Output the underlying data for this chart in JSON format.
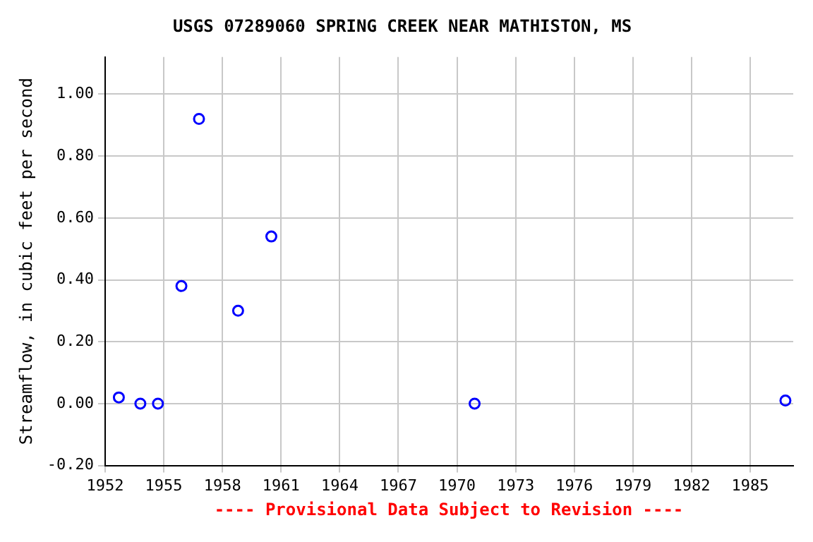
{
  "chart_data": {
    "type": "scatter",
    "title": "USGS 07289060 SPRING CREEK NEAR MATHISTON, MS",
    "ylabel": "Streamflow, in cubic feet per second",
    "annotations": [
      "---- Provisional Data Subject to Revision ----"
    ],
    "x": [
      1952.7,
      1953.8,
      1954.7,
      1955.9,
      1956.8,
      1958.8,
      1960.5,
      1970.9,
      1986.8
    ],
    "series": [
      {
        "color": "#0000ff",
        "values": [
          0.02,
          0,
          0,
          0.38,
          0.92,
          0.3,
          0.54,
          0,
          0.01
        ]
      }
    ],
    "xlim": [
      1952,
      1987.2
    ],
    "xticks": [
      1952,
      1955,
      1958,
      1961,
      1964,
      1967,
      1970,
      1973,
      1976,
      1979,
      1982,
      1985
    ],
    "ylim": [
      -0.2,
      1.12
    ],
    "yticks": [
      {
        "value": -0.2,
        "label": "-0.20"
      },
      {
        "value": 0,
        "label": "0.00"
      },
      {
        "value": 0.2,
        "label": "0.20"
      },
      {
        "value": 0.4,
        "label": "0.40"
      },
      {
        "value": 0.6,
        "label": "0.60"
      },
      {
        "value": 0.8,
        "label": "0.80"
      },
      {
        "value": 1,
        "label": "1.00"
      }
    ],
    "grid": true,
    "marker": "circle",
    "legend": false
  }
}
